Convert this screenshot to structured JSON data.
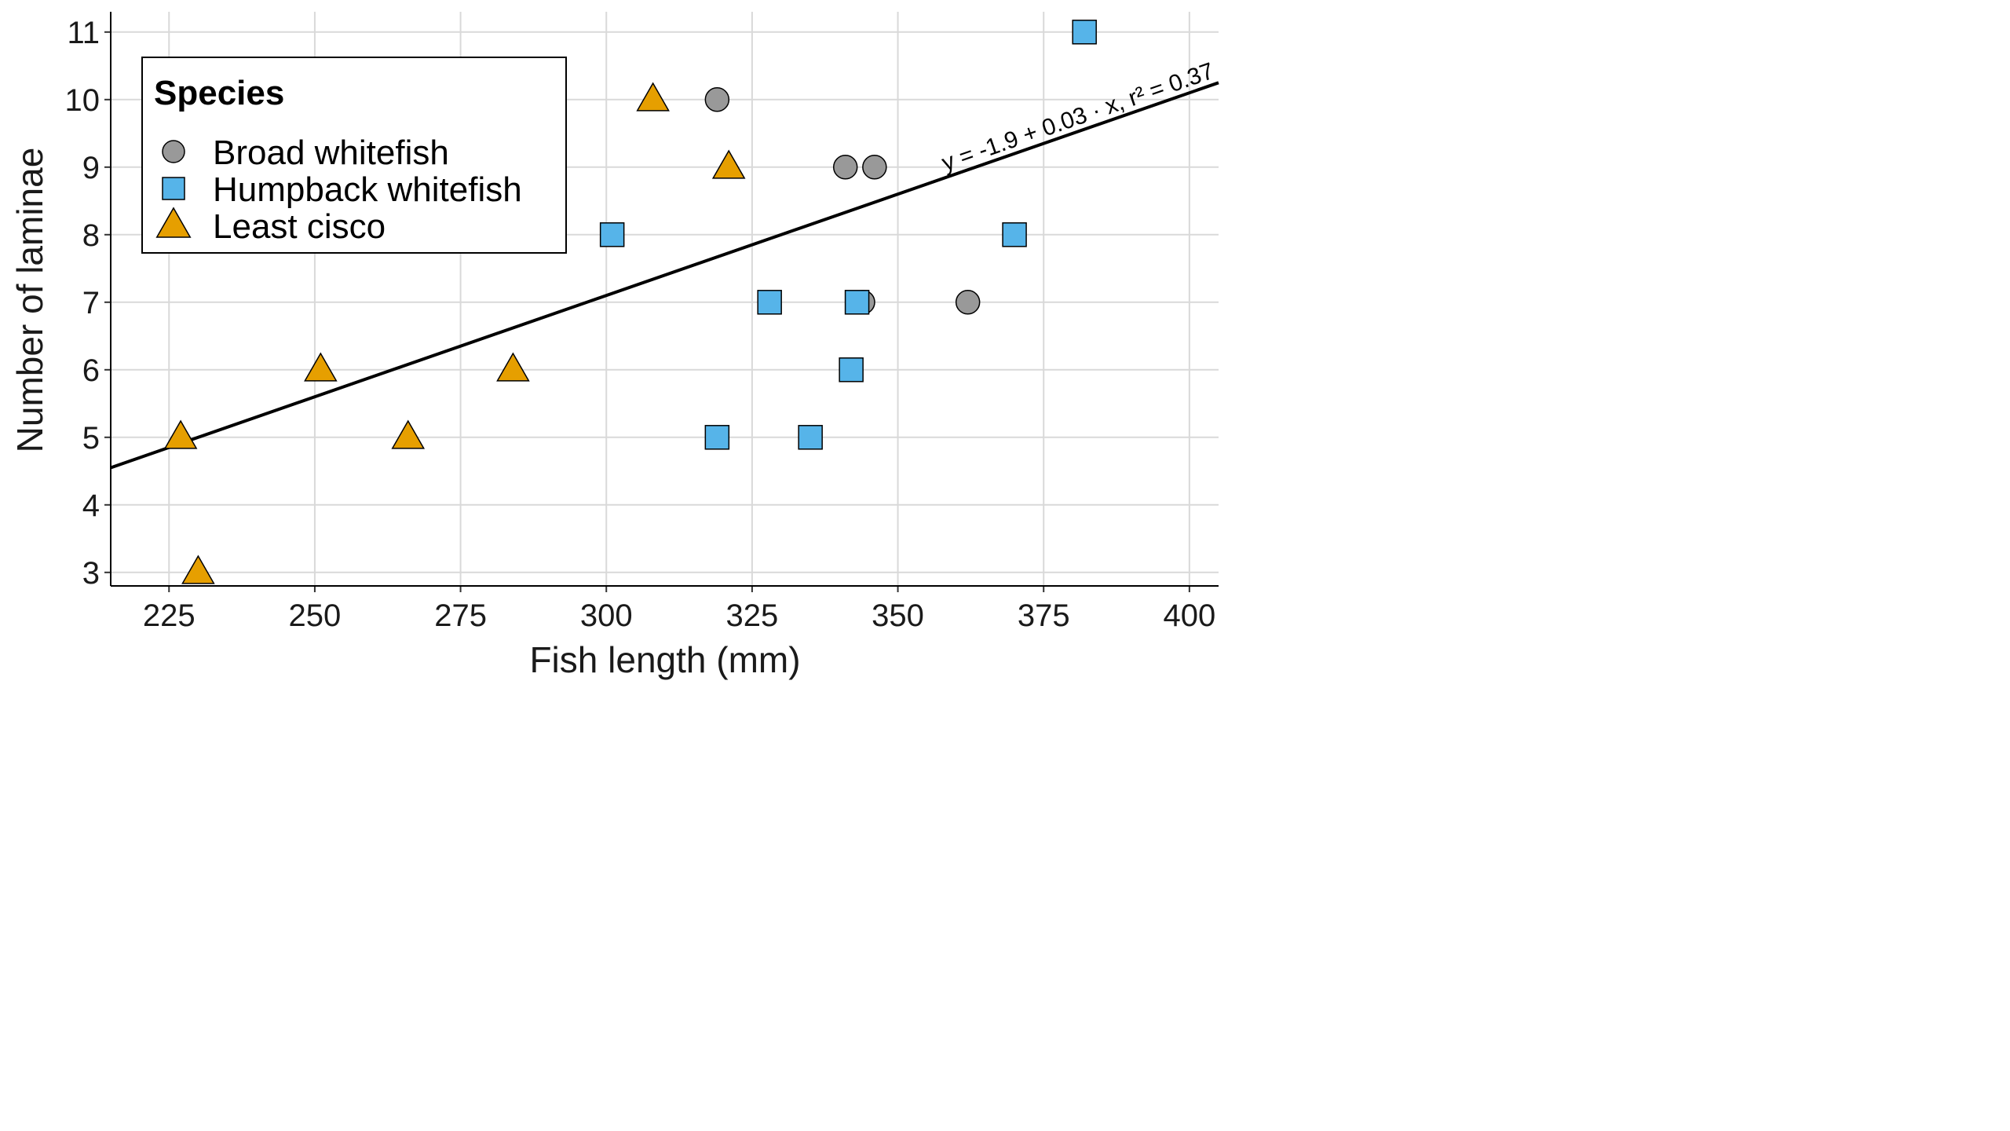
{
  "chart_data": {
    "type": "scatter",
    "xlabel": "Fish length (mm)",
    "ylabel": "Number of laminae",
    "xlim": [
      215,
      405
    ],
    "ylim": [
      2.8,
      11.3
    ],
    "x_ticks": [
      225,
      250,
      275,
      300,
      325,
      350,
      375,
      400
    ],
    "y_ticks": [
      3,
      4,
      5,
      6,
      7,
      8,
      9,
      10,
      11
    ],
    "grid": true,
    "legend": {
      "title": "Species",
      "position": "top-left"
    },
    "series": [
      {
        "name": "Broad whitefish",
        "marker": "circle",
        "color": "#999999",
        "points": [
          {
            "x": 319,
            "y": 10
          },
          {
            "x": 341,
            "y": 9
          },
          {
            "x": 346,
            "y": 9
          },
          {
            "x": 344,
            "y": 7
          },
          {
            "x": 362,
            "y": 7
          }
        ]
      },
      {
        "name": "Humpback whitefish",
        "marker": "square",
        "color": "#56B4E9",
        "points": [
          {
            "x": 382,
            "y": 11
          },
          {
            "x": 301,
            "y": 8
          },
          {
            "x": 370,
            "y": 8
          },
          {
            "x": 328,
            "y": 7
          },
          {
            "x": 343,
            "y": 7
          },
          {
            "x": 342,
            "y": 6
          },
          {
            "x": 319,
            "y": 5
          },
          {
            "x": 335,
            "y": 5
          }
        ]
      },
      {
        "name": "Least cisco",
        "marker": "triangle",
        "color": "#E69F00",
        "points": [
          {
            "x": 308,
            "y": 10
          },
          {
            "x": 321,
            "y": 9
          },
          {
            "x": 251,
            "y": 6
          },
          {
            "x": 284,
            "y": 6
          },
          {
            "x": 227,
            "y": 5
          },
          {
            "x": 266,
            "y": 5
          },
          {
            "x": 230,
            "y": 3
          }
        ]
      }
    ],
    "trendline": {
      "intercept": -1.9,
      "slope": 0.03,
      "x_range": [
        215,
        405
      ],
      "equation_text": "y = -1.9 + 0.03 · x,  r² = 0.37",
      "color": "#000000"
    }
  }
}
